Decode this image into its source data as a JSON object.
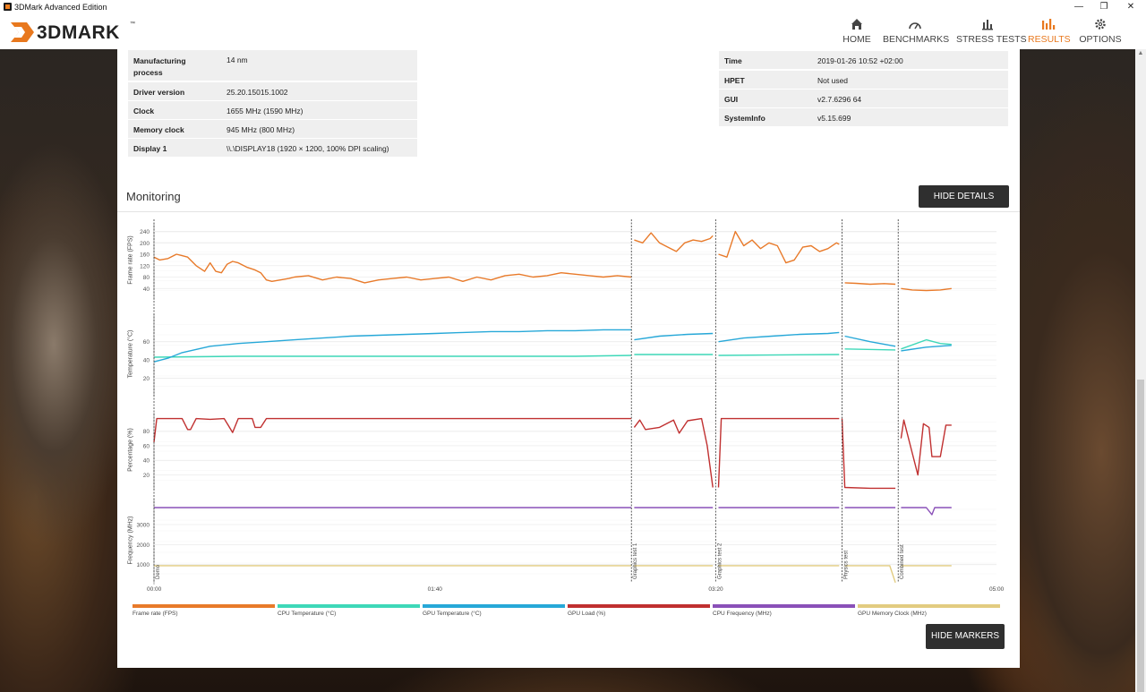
{
  "window": {
    "title": "3DMark Advanced Edition",
    "controls": {
      "minimize": "—",
      "maximize": "❐",
      "close": "✕"
    }
  },
  "brand": {
    "logo_text": "3DMARK",
    "trademark": "™",
    "accent": "#e8781e"
  },
  "nav": [
    {
      "label": "HOME",
      "icon": "home-icon",
      "active": false
    },
    {
      "label": "BENCHMARKS",
      "icon": "gauge-icon",
      "active": false
    },
    {
      "label": "STRESS TESTS",
      "icon": "bar-chart-icon",
      "active": false
    },
    {
      "label": "RESULTS",
      "icon": "results-icon",
      "active": true
    },
    {
      "label": "OPTIONS",
      "icon": "gear-icon",
      "active": false
    }
  ],
  "gpu_details": [
    {
      "key": "Manufacturing\nprocess",
      "value": "14 nm"
    },
    {
      "key": "Driver version",
      "value": "25.20.15015.1002"
    },
    {
      "key": "Clock",
      "value": "1655 MHz (1590 MHz)"
    },
    {
      "key": "Memory clock",
      "value": "945 MHz (800 MHz)"
    },
    {
      "key": "Display 1",
      "value": "\\\\.\\DISPLAY18 (1920 × 1200, 100% DPI scaling)"
    }
  ],
  "system_details": [
    {
      "key": "Time",
      "value": "2019-01-26 10:52 +02:00"
    },
    {
      "key": "HPET",
      "value": "Not used"
    },
    {
      "key": "GUI",
      "value": "v2.7.6296 64"
    },
    {
      "key": "SystemInfo",
      "value": "v5.15.699"
    }
  ],
  "monitoring": {
    "title": "Monitoring",
    "hide_details_label": "HIDE DETAILS",
    "hide_markers_label": "HIDE MARKERS"
  },
  "chart_data": {
    "type": "line",
    "x_unit": "time (mm:ss)",
    "x_ticks": [
      "00:00",
      "01:40",
      "03:20",
      "05:00"
    ],
    "x_range_seconds": [
      0,
      300
    ],
    "markers": [
      {
        "label": "Demo",
        "t": 0
      },
      {
        "label": "Graphics test 1",
        "t": 170
      },
      {
        "label": "Graphics test 2",
        "t": 200
      },
      {
        "label": "Physics test",
        "t": 245
      },
      {
        "label": "Combined test",
        "t": 265
      }
    ],
    "panels": [
      {
        "ylabel": "Frame rate (FPS)",
        "yticks": [
          40,
          80,
          120,
          160,
          200,
          240
        ],
        "ylim": [
          0,
          270
        ],
        "series": [
          {
            "name": "Frame rate (FPS)",
            "color": "#e87a2a",
            "segments": [
              {
                "t": [
                  0,
                  2,
                  5,
                  8,
                  10,
                  12,
                  15,
                  18,
                  20,
                  22,
                  24,
                  26,
                  28,
                  30,
                  33,
                  36,
                  38,
                  40,
                  42,
                  45,
                  48,
                  50,
                  55,
                  60,
                  65,
                  70,
                  75,
                  80,
                  85,
                  90,
                  95,
                  100,
                  105,
                  110,
                  115,
                  120,
                  125,
                  130,
                  135,
                  140,
                  145,
                  150,
                  155,
                  160,
                  165,
                  170
                ],
                "v": [
                  150,
                  140,
                  145,
                  160,
                  155,
                  150,
                  120,
                  100,
                  130,
                  100,
                  95,
                  125,
                  135,
                  130,
                  115,
                  105,
                  95,
                  70,
                  65,
                  70,
                  75,
                  80,
                  85,
                  70,
                  80,
                  75,
                  60,
                  70,
                  75,
                  80,
                  70,
                  75,
                  80,
                  65,
                  80,
                  70,
                  85,
                  90,
                  80,
                  85,
                  95,
                  90,
                  85,
                  80,
                  85,
                  80
                ]
              },
              {
                "t": [
                  171,
                  174,
                  177,
                  180,
                  183,
                  186,
                  189,
                  192,
                  195,
                  198,
                  199
                ],
                "v": [
                  210,
                  200,
                  235,
                  200,
                  185,
                  170,
                  200,
                  210,
                  205,
                  215,
                  225
                ]
              },
              {
                "t": [
                  201,
                  204,
                  207,
                  210,
                  213,
                  216,
                  219,
                  222,
                  225,
                  228,
                  231,
                  234,
                  237,
                  240,
                  243,
                  244
                ],
                "v": [
                  160,
                  150,
                  240,
                  190,
                  210,
                  180,
                  200,
                  190,
                  130,
                  140,
                  185,
                  190,
                  170,
                  180,
                  200,
                  195
                ]
              },
              {
                "t": [
                  246,
                  250,
                  255,
                  260,
                  264
                ],
                "v": [
                  60,
                  58,
                  55,
                  57,
                  55
                ]
              },
              {
                "t": [
                  266,
                  270,
                  275,
                  280,
                  284
                ],
                "v": [
                  40,
                  35,
                  33,
                  35,
                  40
                ]
              }
            ]
          }
        ]
      },
      {
        "ylabel": "Temperature (°C)",
        "yticks": [
          20,
          40,
          60
        ],
        "ylim": [
          0,
          90
        ],
        "series": [
          {
            "name": "CPU Temperature (°C)",
            "color": "#3ed8b8",
            "segments": [
              {
                "t": [
                  0,
                  30,
                  60,
                  90,
                  120,
                  150,
                  170
                ],
                "v": [
                  43,
                  44,
                  44,
                  44,
                  44,
                  44,
                  45
                ]
              },
              {
                "t": [
                  171,
                  199
                ],
                "v": [
                  46,
                  46
                ]
              },
              {
                "t": [
                  201,
                  244
                ],
                "v": [
                  45,
                  46
                ]
              },
              {
                "t": [
                  246,
                  264
                ],
                "v": [
                  52,
                  51
                ]
              },
              {
                "t": [
                  266,
                  275,
                  280,
                  284
                ],
                "v": [
                  52,
                  62,
                  58,
                  57
                ]
              }
            ]
          },
          {
            "name": "GPU Temperature (°C)",
            "color": "#27a8d8",
            "segments": [
              {
                "t": [
                  0,
                  5,
                  10,
                  20,
                  30,
                  40,
                  50,
                  60,
                  70,
                  80,
                  90,
                  100,
                  110,
                  120,
                  130,
                  140,
                  150,
                  160,
                  170
                ],
                "v": [
                  38,
                  42,
                  48,
                  55,
                  58,
                  60,
                  62,
                  64,
                  66,
                  67,
                  68,
                  69,
                  70,
                  71,
                  71,
                  72,
                  72,
                  73,
                  73
                ]
              },
              {
                "t": [
                  171,
                  180,
                  190,
                  199
                ],
                "v": [
                  62,
                  66,
                  68,
                  69
                ]
              },
              {
                "t": [
                  201,
                  210,
                  220,
                  230,
                  240,
                  244
                ],
                "v": [
                  60,
                  64,
                  66,
                  68,
                  69,
                  70
                ]
              },
              {
                "t": [
                  246,
                  255,
                  264
                ],
                "v": [
                  66,
                  60,
                  55
                ]
              },
              {
                "t": [
                  266,
                  275,
                  284
                ],
                "v": [
                  50,
                  54,
                  56
                ]
              }
            ]
          }
        ]
      },
      {
        "ylabel": "Percentage (%)",
        "yticks": [
          20,
          40,
          60,
          80
        ],
        "ylim": [
          0,
          105
        ],
        "series": [
          {
            "name": "GPU Load (%)",
            "color": "#c03030",
            "segments": [
              {
                "t": [
                  0,
                  1,
                  5,
                  10,
                  12,
                  13,
                  15,
                  20,
                  25,
                  28,
                  30,
                  35,
                  36,
                  38,
                  40,
                  42,
                  45,
                  50,
                  55,
                  60,
                  65,
                  70,
                  75,
                  80,
                  90,
                  100,
                  110,
                  120,
                  130,
                  140,
                  150,
                  160,
                  170
                ],
                "v": [
                  65,
                  97,
                  97,
                  97,
                  82,
                  82,
                  97,
                  96,
                  97,
                  78,
                  97,
                  97,
                  85,
                  85,
                  97,
                  97,
                  97,
                  97,
                  97,
                  97,
                  97,
                  97,
                  97,
                  97,
                  97,
                  97,
                  97,
                  97,
                  97,
                  97,
                  97,
                  97,
                  97
                ]
              },
              {
                "t": [
                  171,
                  173,
                  175,
                  180,
                  185,
                  187,
                  190,
                  195,
                  197,
                  199
                ],
                "v": [
                  85,
                  95,
                  82,
                  85,
                  95,
                  77,
                  94,
                  97,
                  60,
                  3
                ]
              },
              {
                "t": [
                  201,
                  202,
                  210,
                  220,
                  230,
                  240,
                  243,
                  244
                ],
                "v": [
                  3,
                  97,
                  97,
                  97,
                  97,
                  97,
                  97,
                  97
                ]
              },
              {
                "t": [
                  245,
                  246,
                  255,
                  264
                ],
                "v": [
                  97,
                  3,
                  2,
                  2
                ]
              },
              {
                "t": [
                  266,
                  267,
                  270,
                  272,
                  274,
                  276,
                  277,
                  280,
                  282,
                  284
                ],
                "v": [
                  70,
                  95,
                  50,
                  20,
                  90,
                  85,
                  45,
                  45,
                  88,
                  88
                ]
              }
            ]
          }
        ]
      },
      {
        "ylabel": "Frequency (MHz)",
        "yticks": [
          1000,
          2000,
          3000
        ],
        "ylim": [
          0,
          4300
        ],
        "series": [
          {
            "name": "CPU Frequency (MHz)",
            "color": "#8a50b8",
            "segments": [
              {
                "t": [
                  0,
                  170
                ],
                "v": [
                  3850,
                  3850
                ]
              },
              {
                "t": [
                  171,
                  199
                ],
                "v": [
                  3850,
                  3850
                ]
              },
              {
                "t": [
                  201,
                  244
                ],
                "v": [
                  3850,
                  3850
                ]
              },
              {
                "t": [
                  246,
                  264
                ],
                "v": [
                  3850,
                  3850
                ]
              },
              {
                "t": [
                  266,
                  275,
                  277,
                  278,
                  284
                ],
                "v": [
                  3850,
                  3850,
                  3500,
                  3850,
                  3850
                ]
              }
            ]
          },
          {
            "name": "GPU Memory Clock (MHz)",
            "color": "#e2cc80",
            "segments": [
              {
                "t": [
                  0,
                  170
                ],
                "v": [
                  945,
                  945
                ]
              },
              {
                "t": [
                  171,
                  199
                ],
                "v": [
                  945,
                  945
                ]
              },
              {
                "t": [
                  201,
                  244
                ],
                "v": [
                  945,
                  945
                ]
              },
              {
                "t": [
                  246,
                  262,
                  264
                ],
                "v": [
                  945,
                  945,
                  100
                ]
              },
              {
                "t": [
                  266,
                  284
                ],
                "v": [
                  945,
                  945
                ]
              }
            ]
          }
        ]
      }
    ],
    "legend": [
      {
        "name": "Frame rate (FPS)",
        "color": "#e87a2a"
      },
      {
        "name": "CPU Temperature (°C)",
        "color": "#3ed8b8"
      },
      {
        "name": "GPU Temperature (°C)",
        "color": "#27a8d8"
      },
      {
        "name": "GPU Load (%)",
        "color": "#c03030"
      },
      {
        "name": "CPU Frequency (MHz)",
        "color": "#8a50b8"
      },
      {
        "name": "GPU Memory Clock (MHz)",
        "color": "#e2cc80"
      }
    ]
  }
}
